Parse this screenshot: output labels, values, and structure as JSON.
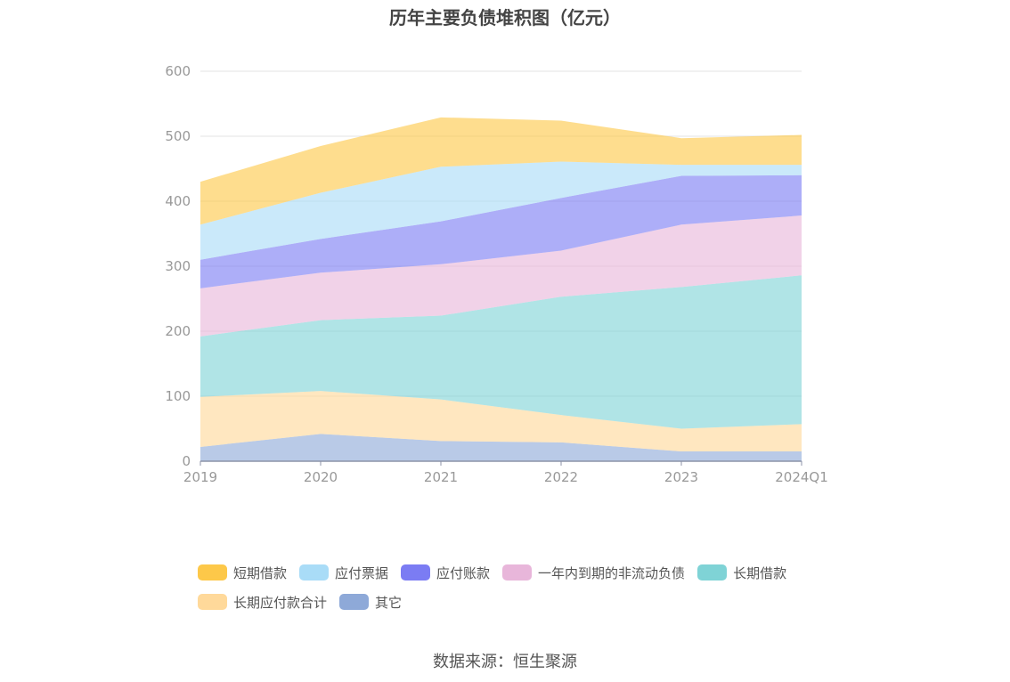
{
  "chart_data": {
    "type": "area",
    "stacked": true,
    "title": "历年主要负债堆积图（亿元）",
    "categories": [
      "2019",
      "2020",
      "2021",
      "2022",
      "2023",
      "2024Q1"
    ],
    "ylim": [
      0,
      600
    ],
    "yticks": [
      "0",
      "100",
      "200",
      "300",
      "400",
      "500",
      "600"
    ],
    "grid": true,
    "legend_position": "bottom",
    "series": [
      {
        "name": "其它",
        "color": "#8EA9D8",
        "values": [
          22,
          42,
          31,
          29,
          15,
          15
        ]
      },
      {
        "name": "长期应付款合计",
        "color": "#FFD99A",
        "values": [
          77,
          66,
          64,
          42,
          35,
          42
        ]
      },
      {
        "name": "长期借款",
        "color": "#7FD3D6",
        "values": [
          93,
          109,
          129,
          182,
          218,
          229
        ]
      },
      {
        "name": "一年内到期的非流动负债",
        "color": "#E8B6DA",
        "values": [
          74,
          73,
          79,
          71,
          96,
          92
        ]
      },
      {
        "name": "应付账款",
        "color": "#7B7CF3",
        "values": [
          44,
          52,
          66,
          81,
          75,
          62
        ]
      },
      {
        "name": "应付票据",
        "color": "#A9DCF7",
        "values": [
          54,
          71,
          84,
          56,
          17,
          16
        ]
      },
      {
        "name": "短期借款",
        "color": "#FDC849",
        "values": [
          66,
          72,
          76,
          63,
          41,
          46
        ]
      }
    ]
  },
  "legend": {
    "row1": [
      {
        "name": "短期借款",
        "color": "#FDC849"
      },
      {
        "name": "应付票据",
        "color": "#A9DCF7"
      },
      {
        "name": "应付账款",
        "color": "#7B7CF3"
      },
      {
        "name": "一年内到期的非流动负债",
        "color": "#E8B6DA"
      },
      {
        "name": "长期借款",
        "color": "#7FD3D6"
      }
    ],
    "row2": [
      {
        "name": "长期应付款合计",
        "color": "#FFD99A"
      },
      {
        "name": "其它",
        "color": "#8EA9D8"
      }
    ]
  },
  "source": "数据来源：恒生聚源"
}
